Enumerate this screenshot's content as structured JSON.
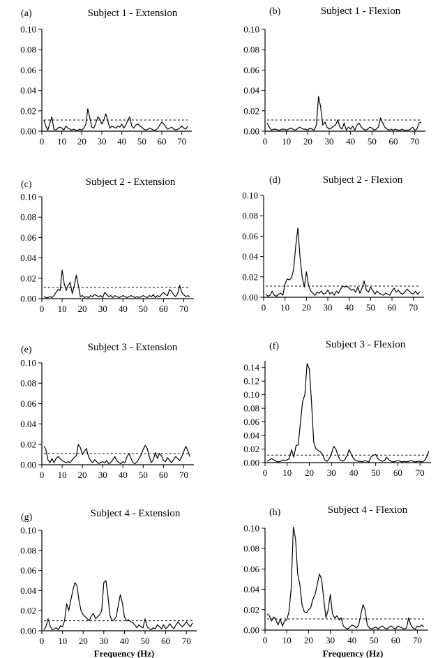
{
  "chart_data": [
    {
      "type": "line",
      "panel": "(a)",
      "title": "Subject 1 - Extension",
      "xlabel": "",
      "ylabel": "",
      "xlim": [
        0,
        75
      ],
      "ylim": [
        0,
        0.1
      ],
      "xticks": [
        0,
        10,
        20,
        30,
        40,
        50,
        60,
        70
      ],
      "yticks": [
        0.0,
        0.02,
        0.04,
        0.06,
        0.08,
        0.1
      ],
      "threshold": 0.011,
      "x": [
        1,
        2,
        3,
        4,
        5,
        6,
        7,
        8,
        9,
        10,
        11,
        12,
        13,
        14,
        15,
        16,
        17,
        18,
        19,
        20,
        21,
        22,
        23,
        24,
        25,
        26,
        27,
        28,
        29,
        30,
        31,
        32,
        33,
        34,
        35,
        36,
        37,
        38,
        39,
        40,
        41,
        42,
        43,
        44,
        45,
        46,
        47,
        48,
        49,
        50,
        51,
        52,
        53,
        54,
        55,
        56,
        57,
        58,
        59,
        60,
        61,
        62,
        63,
        64,
        65,
        66,
        67,
        68,
        69,
        70,
        71,
        72,
        73
      ],
      "y": [
        0.011,
        0.005,
        0.001,
        0.008,
        0.014,
        0.002,
        0.001,
        0.003,
        0.004,
        0.003,
        0.001,
        0.005,
        0.003,
        0.002,
        0.001,
        0.002,
        0.001,
        0.001,
        0.002,
        0.001,
        0.003,
        0.007,
        0.022,
        0.013,
        0.004,
        0.003,
        0.008,
        0.014,
        0.012,
        0.007,
        0.011,
        0.017,
        0.01,
        0.003,
        0.005,
        0.004,
        0.003,
        0.005,
        0.004,
        0.007,
        0.003,
        0.006,
        0.011,
        0.014,
        0.005,
        0.003,
        0.006,
        0.007,
        0.005,
        0.004,
        0.002,
        0.001,
        0.002,
        0.003,
        0.002,
        0.001,
        0.001,
        0.003,
        0.006,
        0.009,
        0.007,
        0.004,
        0.002,
        0.003,
        0.004,
        0.002,
        0.001,
        0.002,
        0.003,
        0.005,
        0.003,
        0.002,
        0.005
      ]
    },
    {
      "type": "line",
      "panel": "(b)",
      "title": "Subject 1 - Flexion",
      "xlabel": "",
      "ylabel": "",
      "xlim": [
        0,
        75
      ],
      "ylim": [
        0,
        0.1
      ],
      "xticks": [
        0,
        10,
        20,
        30,
        40,
        50,
        60,
        70
      ],
      "yticks": [
        0.0,
        0.02,
        0.04,
        0.06,
        0.08,
        0.1
      ],
      "threshold": 0.011,
      "x": [
        1,
        2,
        3,
        4,
        5,
        6,
        7,
        8,
        9,
        10,
        11,
        12,
        13,
        14,
        15,
        16,
        17,
        18,
        19,
        20,
        21,
        22,
        23,
        24,
        25,
        26,
        27,
        28,
        29,
        30,
        31,
        32,
        33,
        34,
        35,
        36,
        37,
        38,
        39,
        40,
        41,
        42,
        43,
        44,
        45,
        46,
        47,
        48,
        49,
        50,
        51,
        52,
        53,
        54,
        55,
        56,
        57,
        58,
        59,
        60,
        61,
        62,
        63,
        64,
        65,
        66,
        67,
        68,
        69,
        70,
        71,
        72,
        73
      ],
      "y": [
        0.008,
        0.004,
        0.001,
        0.002,
        0.002,
        0.001,
        0.001,
        0.002,
        0.002,
        0.001,
        0.002,
        0.003,
        0.002,
        0.001,
        0.002,
        0.004,
        0.003,
        0.002,
        0.002,
        0.001,
        0.003,
        0.002,
        0.001,
        0.006,
        0.034,
        0.024,
        0.006,
        0.009,
        0.004,
        0.002,
        0.003,
        0.005,
        0.006,
        0.011,
        0.004,
        0.002,
        0.008,
        0.001,
        0.004,
        0.002,
        0.005,
        0.001,
        0.006,
        0.008,
        0.004,
        0.002,
        0.001,
        0.002,
        0.004,
        0.003,
        0.001,
        0.002,
        0.004,
        0.013,
        0.008,
        0.004,
        0.002,
        0.001,
        0.002,
        0.001,
        0.002,
        0.001,
        0.001,
        0.002,
        0.001,
        0.001,
        0.001,
        0.002,
        0.004,
        0.001,
        0.002,
        0.008,
        0.009
      ]
    },
    {
      "type": "line",
      "panel": "(c)",
      "title": "Subject 2 - Extension",
      "xlabel": "",
      "ylabel": "",
      "xlim": [
        0,
        75
      ],
      "ylim": [
        0,
        0.1
      ],
      "xticks": [
        0,
        10,
        20,
        30,
        40,
        50,
        60,
        70
      ],
      "yticks": [
        0.0,
        0.02,
        0.04,
        0.06,
        0.08,
        0.1
      ],
      "threshold": 0.011,
      "x": [
        1,
        2,
        3,
        4,
        5,
        6,
        7,
        8,
        9,
        10,
        11,
        12,
        13,
        14,
        15,
        16,
        17,
        18,
        19,
        20,
        21,
        22,
        23,
        24,
        25,
        26,
        27,
        28,
        29,
        30,
        31,
        32,
        33,
        34,
        35,
        36,
        37,
        38,
        39,
        40,
        41,
        42,
        43,
        44,
        45,
        46,
        47,
        48,
        49,
        50,
        51,
        52,
        53,
        54,
        55,
        56,
        57,
        58,
        59,
        60,
        61,
        62,
        63,
        64,
        65,
        66,
        67,
        68,
        69,
        70,
        71,
        72,
        73
      ],
      "y": [
        0.002,
        0.001,
        0.001,
        0.002,
        0.001,
        0.003,
        0.006,
        0.009,
        0.008,
        0.028,
        0.015,
        0.008,
        0.013,
        0.016,
        0.005,
        0.013,
        0.023,
        0.013,
        0.002,
        0.003,
        0.001,
        0.002,
        0.001,
        0.003,
        0.002,
        0.004,
        0.003,
        0.002,
        0.003,
        0.001,
        0.006,
        0.004,
        0.002,
        0.003,
        0.001,
        0.003,
        0.002,
        0.001,
        0.002,
        0.003,
        0.002,
        0.001,
        0.002,
        0.003,
        0.002,
        0.001,
        0.002,
        0.001,
        0.002,
        0.003,
        0.002,
        0.001,
        0.003,
        0.002,
        0.004,
        0.001,
        0.003,
        0.002,
        0.004,
        0.006,
        0.004,
        0.003,
        0.009,
        0.007,
        0.004,
        0.002,
        0.005,
        0.013,
        0.006,
        0.004,
        0.002,
        0.003,
        0.002
      ]
    },
    {
      "type": "line",
      "panel": "(d)",
      "title": "Subject 2 - Flexion",
      "xlabel": "",
      "ylabel": "",
      "xlim": [
        0,
        75
      ],
      "ylim": [
        0,
        0.1
      ],
      "xticks": [
        0,
        10,
        20,
        30,
        40,
        50,
        60,
        70
      ],
      "yticks": [
        0.0,
        0.02,
        0.04,
        0.06,
        0.08,
        0.1
      ],
      "threshold": 0.011,
      "x": [
        1,
        2,
        3,
        4,
        5,
        6,
        7,
        8,
        9,
        10,
        11,
        12,
        13,
        14,
        15,
        16,
        17,
        18,
        19,
        20,
        21,
        22,
        23,
        24,
        25,
        26,
        27,
        28,
        29,
        30,
        31,
        32,
        33,
        34,
        35,
        36,
        37,
        38,
        39,
        40,
        41,
        42,
        43,
        44,
        45,
        46,
        47,
        48,
        49,
        50,
        51,
        52,
        53,
        54,
        55,
        56,
        57,
        58,
        59,
        60,
        61,
        62,
        63,
        64,
        65,
        66,
        67,
        68,
        69,
        70,
        71,
        72,
        73
      ],
      "y": [
        0.003,
        0.001,
        0.002,
        0.006,
        0.002,
        0.001,
        0.003,
        0.004,
        0.002,
        0.013,
        0.018,
        0.017,
        0.019,
        0.027,
        0.05,
        0.068,
        0.04,
        0.02,
        0.01,
        0.025,
        0.012,
        0.006,
        0.004,
        0.002,
        0.005,
        0.004,
        0.006,
        0.003,
        0.004,
        0.007,
        0.003,
        0.005,
        0.002,
        0.006,
        0.004,
        0.008,
        0.011,
        0.01,
        0.011,
        0.009,
        0.007,
        0.008,
        0.005,
        0.01,
        0.004,
        0.009,
        0.016,
        0.007,
        0.005,
        0.01,
        0.007,
        0.003,
        0.006,
        0.004,
        0.003,
        0.002,
        0.004,
        0.003,
        0.002,
        0.006,
        0.009,
        0.005,
        0.007,
        0.004,
        0.003,
        0.005,
        0.008,
        0.006,
        0.004,
        0.003,
        0.006,
        0.003,
        0.005
      ]
    },
    {
      "type": "line",
      "panel": "(e)",
      "title": "Subject 3 - Extension",
      "xlabel": "",
      "ylabel": "",
      "xlim": [
        0,
        75
      ],
      "ylim": [
        0,
        0.1
      ],
      "xticks": [
        0,
        10,
        20,
        30,
        40,
        50,
        60,
        70
      ],
      "yticks": [
        0.0,
        0.02,
        0.04,
        0.06,
        0.08,
        0.1
      ],
      "threshold": 0.011,
      "x": [
        1,
        2,
        3,
        4,
        5,
        6,
        7,
        8,
        9,
        10,
        11,
        12,
        13,
        14,
        15,
        16,
        17,
        18,
        19,
        20,
        21,
        22,
        23,
        24,
        25,
        26,
        27,
        28,
        29,
        30,
        31,
        32,
        33,
        34,
        35,
        36,
        37,
        38,
        39,
        40,
        41,
        42,
        43,
        44,
        45,
        46,
        47,
        48,
        49,
        50,
        51,
        52,
        53,
        54,
        55,
        56,
        57,
        58,
        59,
        60,
        61,
        62,
        63,
        64,
        65,
        66,
        67,
        68,
        69,
        70,
        71,
        72,
        73
      ],
      "y": [
        0.018,
        0.015,
        0.005,
        0.002,
        0.006,
        0.002,
        0.006,
        0.008,
        0.006,
        0.004,
        0.003,
        0.002,
        0.003,
        0.002,
        0.005,
        0.007,
        0.009,
        0.02,
        0.017,
        0.01,
        0.013,
        0.016,
        0.008,
        0.004,
        0.002,
        0.005,
        0.003,
        0.001,
        0.002,
        0.003,
        0.002,
        0.004,
        0.001,
        0.002,
        0.005,
        0.008,
        0.004,
        0.002,
        0.001,
        0.003,
        0.002,
        0.008,
        0.011,
        0.006,
        0.002,
        0.001,
        0.003,
        0.006,
        0.01,
        0.015,
        0.019,
        0.016,
        0.008,
        0.002,
        0.005,
        0.012,
        0.006,
        0.011,
        0.009,
        0.004,
        0.003,
        0.007,
        0.004,
        0.002,
        0.005,
        0.008,
        0.006,
        0.004,
        0.008,
        0.013,
        0.018,
        0.014,
        0.008
      ]
    },
    {
      "type": "line",
      "panel": "(f)",
      "title": "Subject 3 - Flexion",
      "xlabel": "",
      "ylabel": "",
      "xlim": [
        0,
        75
      ],
      "ylim": [
        0,
        0.15
      ],
      "xticks": [
        0,
        10,
        20,
        30,
        40,
        50,
        60,
        70
      ],
      "yticks": [
        0.0,
        0.02,
        0.04,
        0.06,
        0.08,
        0.1,
        0.12,
        0.14
      ],
      "threshold": 0.011,
      "x": [
        1,
        2,
        3,
        4,
        5,
        6,
        7,
        8,
        9,
        10,
        11,
        12,
        13,
        14,
        15,
        16,
        17,
        18,
        19,
        20,
        21,
        22,
        23,
        24,
        25,
        26,
        27,
        28,
        29,
        30,
        31,
        32,
        33,
        34,
        35,
        36,
        37,
        38,
        39,
        40,
        41,
        42,
        43,
        44,
        45,
        46,
        47,
        48,
        49,
        50,
        51,
        52,
        53,
        54,
        55,
        56,
        57,
        58,
        59,
        60,
        61,
        62,
        63,
        64,
        65,
        66,
        67,
        68,
        69,
        70,
        71,
        72,
        73,
        74
      ],
      "y": [
        0.002,
        0.004,
        0.006,
        0.004,
        0.002,
        0.001,
        0.002,
        0.004,
        0.003,
        0.004,
        0.006,
        0.019,
        0.008,
        0.025,
        0.026,
        0.06,
        0.09,
        0.1,
        0.146,
        0.138,
        0.09,
        0.03,
        0.02,
        0.018,
        0.016,
        0.012,
        0.004,
        0.002,
        0.006,
        0.013,
        0.024,
        0.02,
        0.01,
        0.004,
        0.002,
        0.004,
        0.01,
        0.019,
        0.012,
        0.006,
        0.003,
        0.002,
        0.002,
        0.001,
        0.003,
        0.002,
        0.001,
        0.009,
        0.011,
        0.012,
        0.006,
        0.003,
        0.002,
        0.003,
        0.008,
        0.004,
        0.002,
        0.001,
        0.002,
        0.003,
        0.002,
        0.001,
        0.002,
        0.001,
        0.002,
        0.003,
        0.002,
        0.001,
        0.002,
        0.002,
        0.001,
        0.003,
        0.008,
        0.017
      ]
    },
    {
      "type": "line",
      "panel": "(g)",
      "title": "Subject 4 - Extension",
      "xlabel": "Frequency (Hz)",
      "ylabel": "",
      "xlim": [
        0,
        75
      ],
      "ylim": [
        0,
        0.1
      ],
      "xticks": [
        0,
        10,
        20,
        30,
        40,
        50,
        60,
        70
      ],
      "yticks": [
        0.0,
        0.02,
        0.04,
        0.06,
        0.08,
        0.1
      ],
      "threshold": 0.01,
      "x": [
        1,
        2,
        3,
        4,
        5,
        6,
        7,
        8,
        9,
        10,
        11,
        12,
        13,
        14,
        15,
        16,
        17,
        18,
        19,
        20,
        21,
        22,
        23,
        24,
        25,
        26,
        27,
        28,
        29,
        30,
        31,
        32,
        33,
        34,
        35,
        36,
        37,
        38,
        39,
        40,
        41,
        42,
        43,
        44,
        45,
        46,
        47,
        48,
        49,
        50,
        51,
        52,
        53,
        54,
        55,
        56,
        57,
        58,
        59,
        60,
        61,
        62,
        63,
        64,
        65,
        66,
        67,
        68,
        69,
        70,
        71,
        72,
        73
      ],
      "y": [
        0.001,
        0.004,
        0.012,
        0.005,
        0.001,
        0.002,
        0.003,
        0.001,
        0.005,
        0.004,
        0.01,
        0.027,
        0.02,
        0.03,
        0.04,
        0.048,
        0.045,
        0.03,
        0.02,
        0.016,
        0.014,
        0.012,
        0.01,
        0.015,
        0.017,
        0.012,
        0.014,
        0.016,
        0.02,
        0.048,
        0.05,
        0.035,
        0.015,
        0.01,
        0.011,
        0.014,
        0.025,
        0.036,
        0.028,
        0.014,
        0.01,
        0.011,
        0.009,
        0.008,
        0.006,
        0.003,
        0.006,
        0.004,
        0.003,
        0.012,
        0.004,
        0.002,
        0.001,
        0.003,
        0.002,
        0.006,
        0.004,
        0.002,
        0.006,
        0.002,
        0.004,
        0.007,
        0.004,
        0.002,
        0.006,
        0.009,
        0.006,
        0.004,
        0.006,
        0.009,
        0.006,
        0.004,
        0.008
      ]
    },
    {
      "type": "line",
      "panel": "(h)",
      "title": "Subject 4 - Flexion",
      "xlabel": "Frequency (Hz)",
      "ylabel": "",
      "xlim": [
        0,
        75
      ],
      "ylim": [
        0,
        0.1
      ],
      "xticks": [
        0,
        10,
        20,
        30,
        40,
        50,
        60,
        70
      ],
      "yticks": [
        0.0,
        0.02,
        0.04,
        0.06,
        0.08,
        0.1
      ],
      "threshold": 0.011,
      "x": [
        1,
        2,
        3,
        4,
        5,
        6,
        7,
        8,
        9,
        10,
        11,
        12,
        13,
        14,
        15,
        16,
        17,
        18,
        19,
        20,
        21,
        22,
        23,
        24,
        25,
        26,
        27,
        28,
        29,
        30,
        31,
        32,
        33,
        34,
        35,
        36,
        37,
        38,
        39,
        40,
        41,
        42,
        43,
        44,
        45,
        46,
        47,
        48,
        49,
        50,
        51,
        52,
        53,
        54,
        55,
        56,
        57,
        58,
        59,
        60,
        61,
        62,
        63,
        64,
        65,
        66,
        67,
        68,
        69,
        70,
        71,
        72,
        73
      ],
      "y": [
        0.016,
        0.014,
        0.009,
        0.013,
        0.01,
        0.005,
        0.011,
        0.004,
        0.009,
        0.01,
        0.018,
        0.04,
        0.101,
        0.09,
        0.055,
        0.045,
        0.025,
        0.018,
        0.017,
        0.02,
        0.022,
        0.03,
        0.035,
        0.045,
        0.055,
        0.05,
        0.03,
        0.012,
        0.02,
        0.035,
        0.016,
        0.012,
        0.014,
        0.01,
        0.012,
        0.004,
        0.002,
        0.001,
        0.003,
        0.005,
        0.004,
        0.002,
        0.005,
        0.015,
        0.025,
        0.02,
        0.005,
        0.002,
        0.001,
        0.002,
        0.003,
        0.001,
        0.003,
        0.004,
        0.002,
        0.001,
        0.003,
        0.004,
        0.002,
        0.001,
        0.004,
        0.003,
        0.002,
        0.001,
        0.002,
        0.012,
        0.005,
        0.002,
        0.001,
        0.004,
        0.003,
        0.005,
        0.003
      ]
    }
  ]
}
